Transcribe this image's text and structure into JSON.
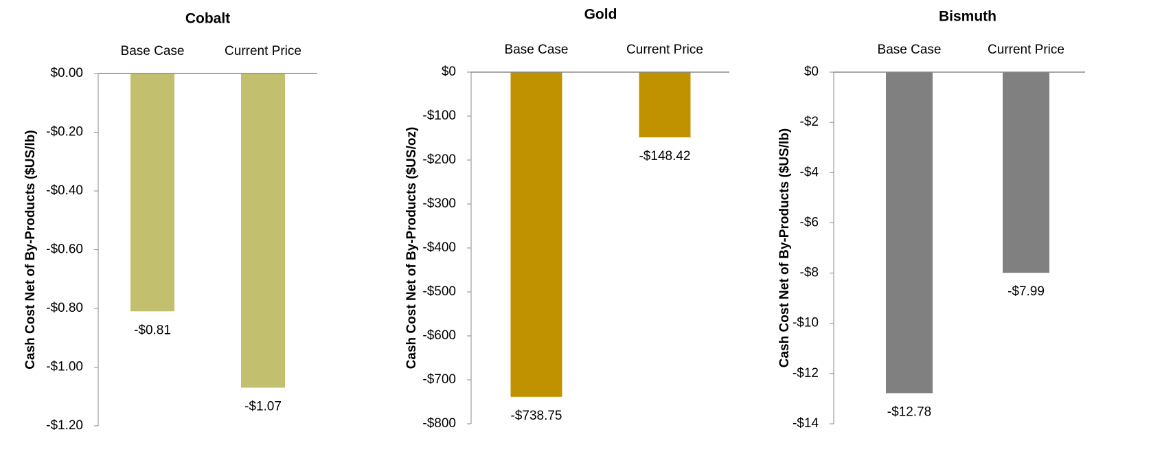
{
  "chart_data": [
    {
      "type": "bar",
      "title": "Cobalt",
      "ylabel": "Cash Cost Net of By-Products ($US/lb)",
      "categories": [
        "Base Case",
        "Current Price"
      ],
      "values": [
        -0.81,
        -1.07
      ],
      "value_labels": [
        "-$0.81",
        "-$1.07"
      ],
      "color": "#c2bf6e",
      "ylim": [
        -1.2,
        0
      ],
      "yticks": [
        {
          "value": 0,
          "label": "$0.00"
        },
        {
          "value": -0.2,
          "label": "-$0.20"
        },
        {
          "value": -0.4,
          "label": "-$0.40"
        },
        {
          "value": -0.6,
          "label": "-$0.60"
        },
        {
          "value": -0.8,
          "label": "-$0.80"
        },
        {
          "value": -1.0,
          "label": "-$1.00"
        },
        {
          "value": -1.2,
          "label": "-$1.20"
        }
      ]
    },
    {
      "type": "bar",
      "title": "Gold",
      "ylabel": "Cash Cost Net of By-Products ($US/oz)",
      "categories": [
        "Base Case",
        "Current Price"
      ],
      "values": [
        -738.75,
        -148.42
      ],
      "value_labels": [
        "-$738.75",
        "-$148.42"
      ],
      "color": "#c09200",
      "ylim": [
        -800,
        0
      ],
      "yticks": [
        {
          "value": 0,
          "label": "$0"
        },
        {
          "value": -100,
          "label": "-$100"
        },
        {
          "value": -200,
          "label": "-$200"
        },
        {
          "value": -300,
          "label": "-$300"
        },
        {
          "value": -400,
          "label": "-$400"
        },
        {
          "value": -500,
          "label": "-$500"
        },
        {
          "value": -600,
          "label": "-$600"
        },
        {
          "value": -700,
          "label": "-$700"
        },
        {
          "value": -800,
          "label": "-$800"
        }
      ]
    },
    {
      "type": "bar",
      "title": "Bismuth",
      "ylabel": "Cash Cost Net of By-Products ($US/lb)",
      "categories": [
        "Base Case",
        "Current Price"
      ],
      "values": [
        -12.78,
        -7.99
      ],
      "value_labels": [
        "-$12.78",
        "-$7.99"
      ],
      "color": "#808080",
      "ylim": [
        -14,
        0
      ],
      "yticks": [
        {
          "value": 0,
          "label": "$0"
        },
        {
          "value": -2,
          "label": "-$2"
        },
        {
          "value": -4,
          "label": "-$4"
        },
        {
          "value": -6,
          "label": "-$6"
        },
        {
          "value": -8,
          "label": "-$8"
        },
        {
          "value": -10,
          "label": "-$10"
        },
        {
          "value": -12,
          "label": "-$12"
        },
        {
          "value": -14,
          "label": "-$14"
        }
      ]
    }
  ]
}
